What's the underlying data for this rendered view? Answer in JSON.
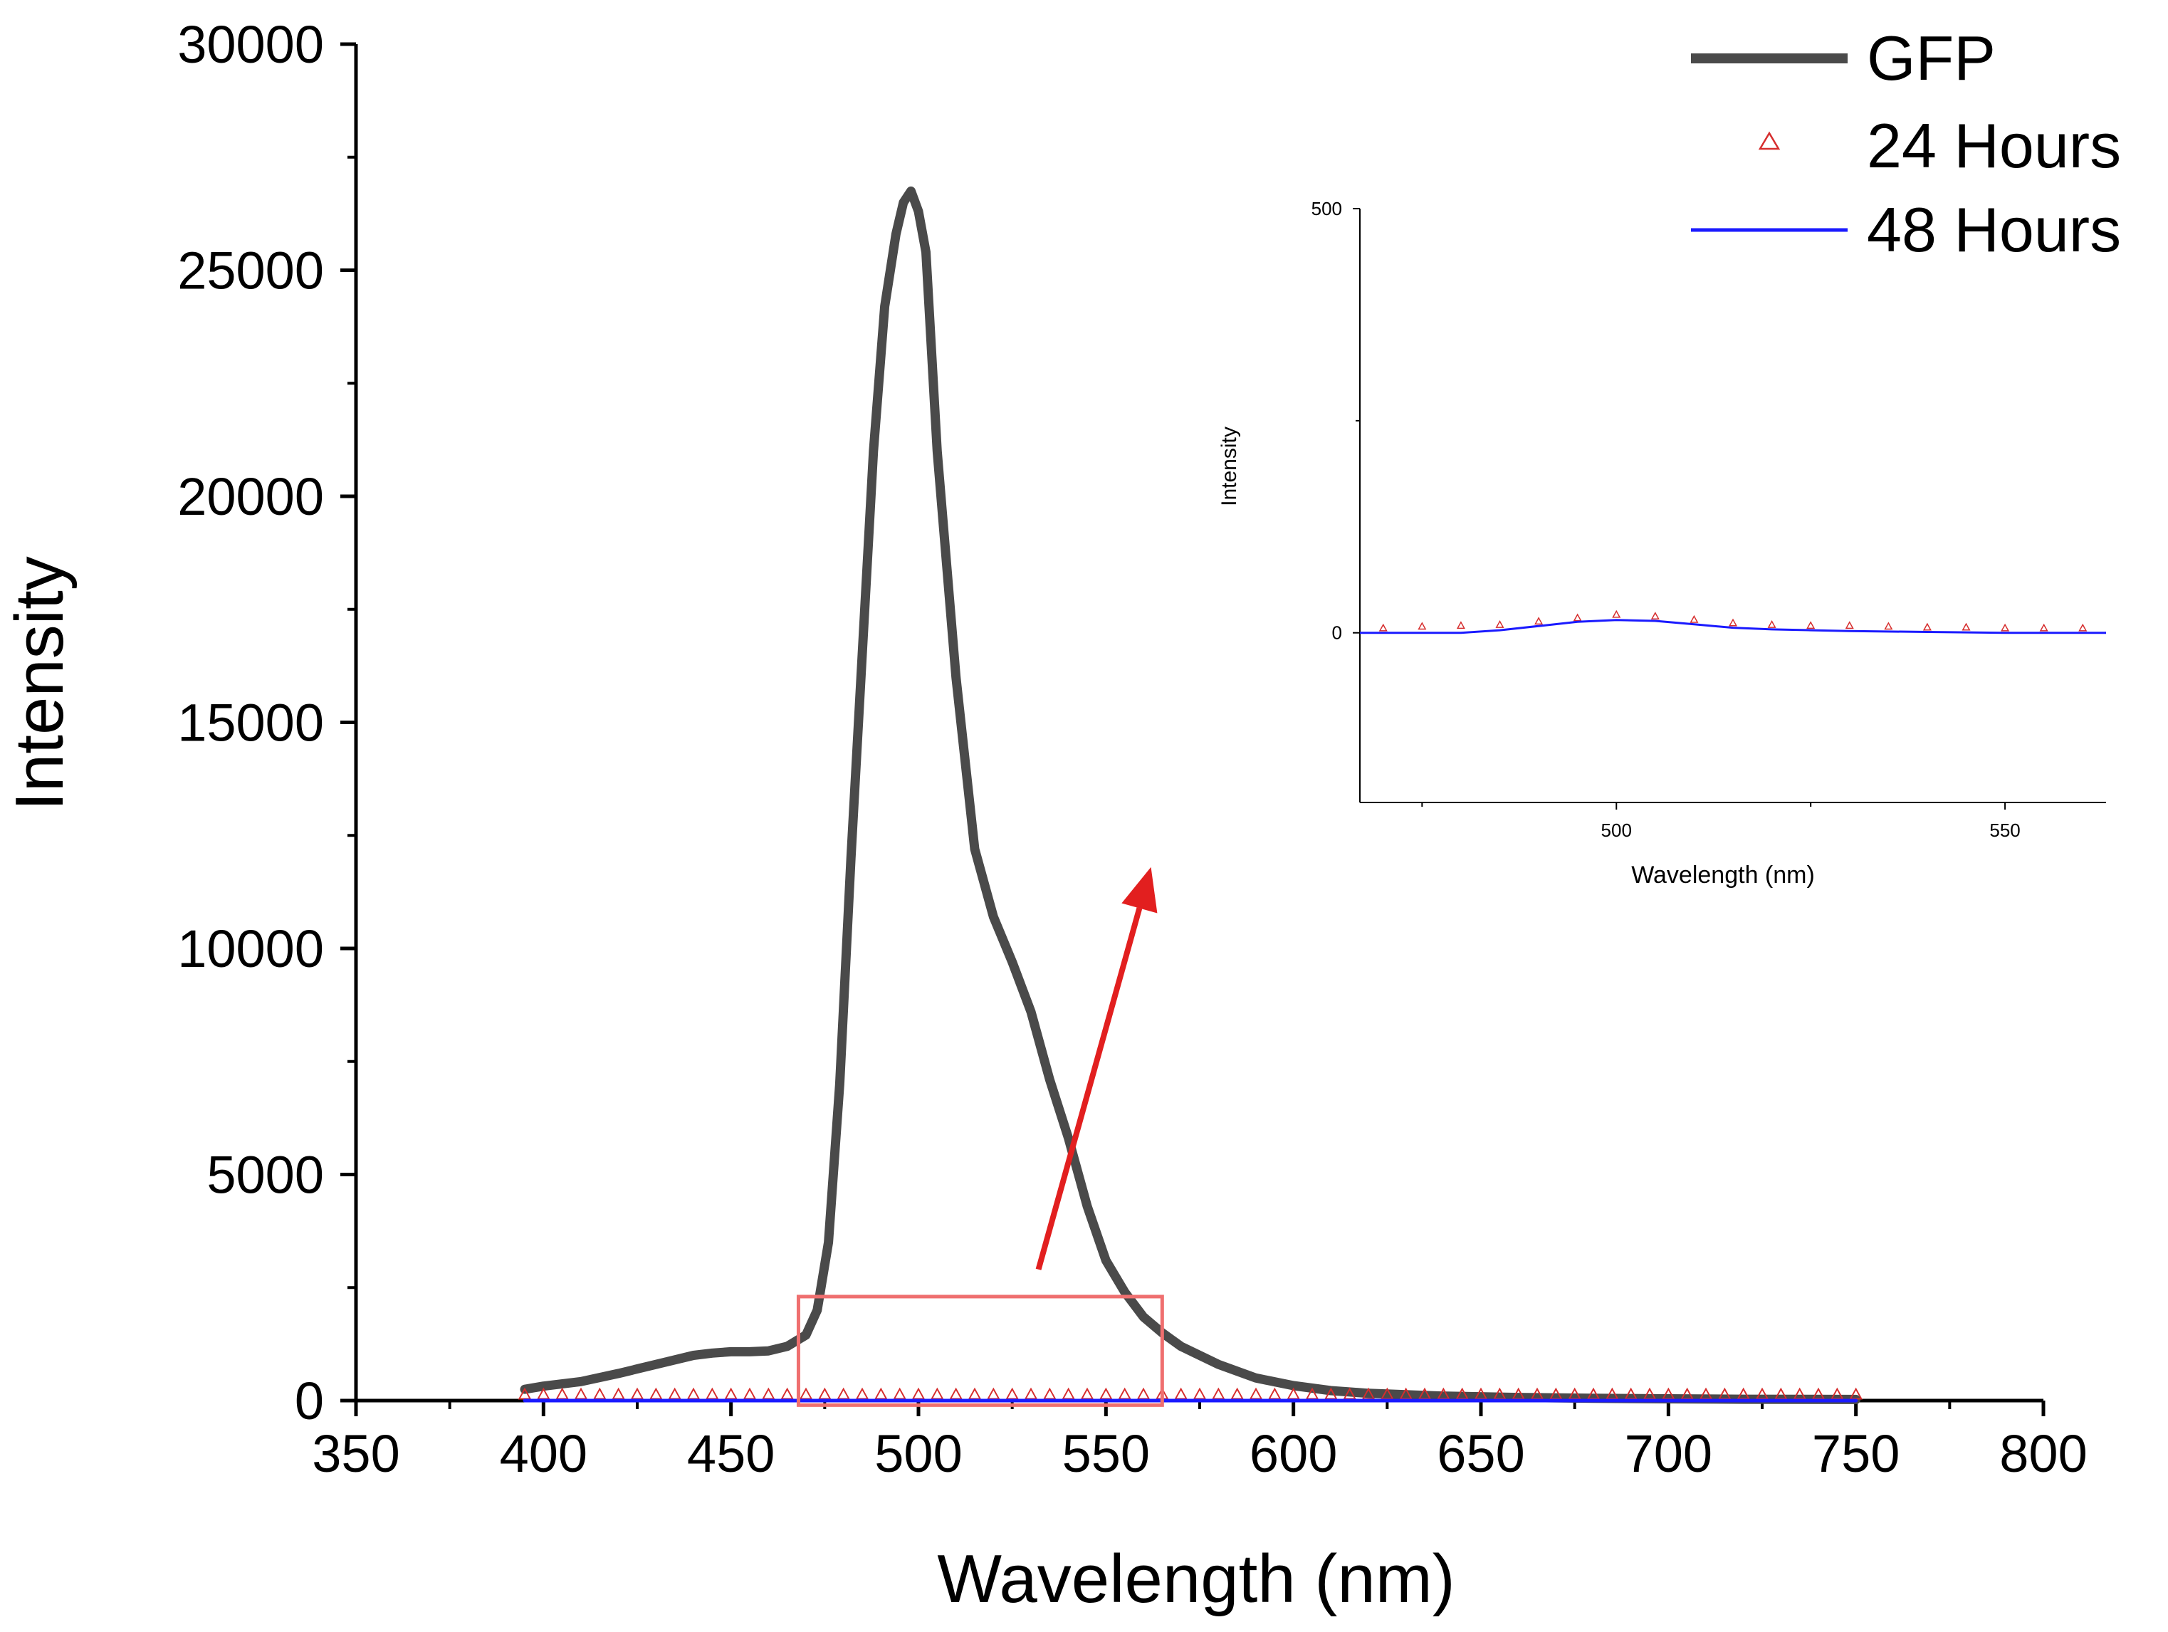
{
  "chart_data": [
    {
      "id": "main",
      "type": "line",
      "title": "",
      "xlabel": "Wavelength (nm)",
      "ylabel": "Intensity",
      "xlim": [
        350,
        800
      ],
      "ylim": [
        0,
        30000
      ],
      "x_major_ticks": [
        350,
        400,
        450,
        500,
        550,
        600,
        650,
        700,
        750,
        800
      ],
      "y_major_ticks": [
        0,
        5000,
        10000,
        15000,
        20000,
        25000,
        30000
      ],
      "x_tick_labels": [
        "350",
        "400",
        "450",
        "500",
        "550",
        "600",
        "650",
        "700",
        "750",
        "800"
      ],
      "y_tick_labels": [
        "0",
        "5000",
        "10000",
        "15000",
        "20000",
        "25000",
        "30000"
      ],
      "grid": false,
      "legend_position": "top-right",
      "series": [
        {
          "name": "GFP",
          "style": "line",
          "color": "#4a4a4a",
          "x": [
            395,
            400,
            410,
            420,
            430,
            440,
            445,
            450,
            455,
            460,
            465,
            470,
            473,
            476,
            479,
            482,
            485,
            488,
            491,
            494,
            496,
            498,
            500,
            502,
            505,
            510,
            515,
            520,
            525,
            530,
            535,
            540,
            545,
            550,
            555,
            560,
            565,
            570,
            580,
            590,
            600,
            610,
            620,
            640,
            660,
            680,
            700,
            720,
            750
          ],
          "y": [
            250,
            320,
            420,
            600,
            800,
            1000,
            1050,
            1080,
            1080,
            1100,
            1200,
            1450,
            2000,
            3500,
            7000,
            12000,
            16500,
            21000,
            24200,
            25800,
            26500,
            26750,
            26300,
            25400,
            21000,
            16000,
            12200,
            10700,
            9700,
            8600,
            7100,
            5800,
            4300,
            3100,
            2400,
            1850,
            1500,
            1200,
            800,
            500,
            330,
            220,
            160,
            100,
            70,
            50,
            40,
            30,
            25
          ]
        },
        {
          "name": "24 Hours",
          "style": "markers",
          "marker": "open-triangle",
          "color": "#d62d2d",
          "x_start": 395,
          "x_end": 750,
          "x_step": 5,
          "y_constant": 5
        },
        {
          "name": "48 Hours",
          "style": "line",
          "color": "#1a1aff",
          "x": [
            395,
            750
          ],
          "y": [
            0,
            0
          ]
        }
      ],
      "annotations": {
        "zoom_box": {
          "x": [
            468,
            565
          ],
          "y": [
            -100,
            2300
          ],
          "color": "#ef6f6f"
        },
        "arrow": {
          "from": [
            532,
            2900
          ],
          "to": [
            562,
            11800
          ],
          "color": "#e21f1f"
        }
      }
    },
    {
      "id": "inset",
      "type": "line",
      "title": "",
      "xlabel": "Wavelength (nm)",
      "ylabel": "Intensity",
      "xlim": [
        467,
        563
      ],
      "ylim": [
        -200,
        500
      ],
      "x_major_ticks": [
        500,
        550
      ],
      "x_tick_labels": [
        "500",
        "550"
      ],
      "y_major_ticks": [
        0,
        500
      ],
      "y_tick_labels": [
        "0",
        "500"
      ],
      "x_minor_ticks": [
        475,
        525
      ],
      "y_minor_ticks": [
        250
      ],
      "grid": false,
      "series": [
        {
          "name": "24 Hours",
          "style": "markers",
          "marker": "open-triangle",
          "color": "#d62d2d",
          "x": [
            470,
            475,
            480,
            485,
            490,
            495,
            500,
            505,
            510,
            515,
            520,
            525,
            530,
            535,
            540,
            545,
            550,
            555,
            560
          ],
          "y": [
            2,
            4,
            5,
            6,
            10,
            14,
            18,
            16,
            12,
            8,
            6,
            5,
            5,
            4,
            3,
            3,
            2,
            2,
            2
          ]
        },
        {
          "name": "48 Hours",
          "style": "line",
          "color": "#1a1aff",
          "x": [
            467,
            475,
            480,
            485,
            490,
            495,
            500,
            505,
            510,
            515,
            520,
            525,
            530,
            540,
            550,
            563
          ],
          "y": [
            0,
            0,
            0,
            3,
            8,
            13,
            15,
            14,
            10,
            6,
            4,
            3,
            2,
            1,
            0,
            0
          ]
        }
      ]
    }
  ]
}
